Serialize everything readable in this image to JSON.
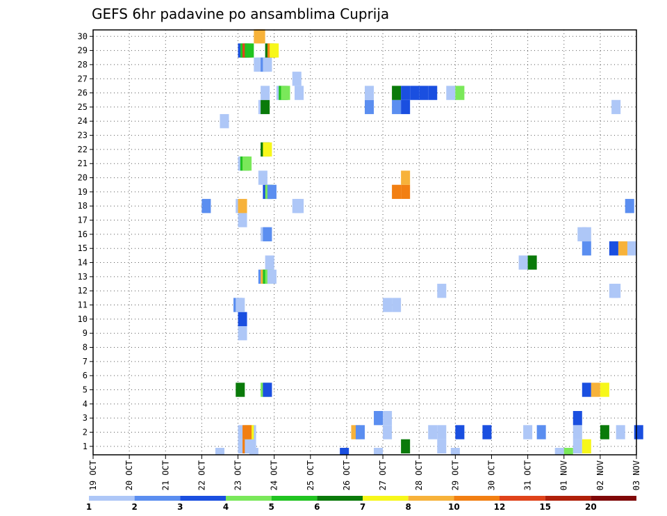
{
  "chart_data": {
    "type": "heatmap",
    "title": "GEFS 6hr padavine po ansamblima Cuprija",
    "xlabel": "",
    "ylabel": "",
    "x_tick_labels": [
      "19 OCT",
      "20 OCT",
      "21 OCT",
      "22 OCT",
      "23 OCT",
      "24 OCT",
      "25 OCT",
      "26 OCT",
      "27 OCT",
      "28 OCT",
      "29 OCT",
      "30 OCT",
      "31 OCT",
      "01 NOV",
      "02 NOV",
      "03 NOV"
    ],
    "y_tick_labels": [
      "1",
      "2",
      "3",
      "4",
      "5",
      "6",
      "7",
      "8",
      "9",
      "10",
      "11",
      "12",
      "13",
      "14",
      "15",
      "16",
      "17",
      "18",
      "19",
      "20",
      "21",
      "22",
      "23",
      "24",
      "25",
      "26",
      "27",
      "28",
      "29",
      "30"
    ],
    "xlim_days": [
      0,
      15
    ],
    "steps_per_day": 4,
    "ylim": [
      0,
      30
    ],
    "grid": true,
    "legend": {
      "colors": [
        "#aec7f7",
        "#5b8ef0",
        "#1a4fe0",
        "#7ae85a",
        "#21c421",
        "#0a7a0a",
        "#f7f71a",
        "#f7b23a",
        "#f27f12",
        "#e0431a",
        "#b0200a",
        "#800808"
      ],
      "labels": [
        "1",
        "2",
        "3",
        "4",
        "5",
        "6",
        "7",
        "8",
        "10",
        "12",
        "15",
        "20"
      ]
    },
    "cells": [
      [
        0,
        4,
        1
      ],
      [
        0,
        4.25,
        1
      ],
      [
        0,
        8.5,
        6
      ],
      [
        0,
        9.5,
        1
      ],
      [
        0,
        13.25,
        1
      ],
      [
        0,
        13.5,
        7
      ],
      [
        0,
        16.5,
        9
      ],
      [
        0,
        16.75,
        1
      ],
      [
        1,
        4,
        1
      ],
      [
        1,
        4.25,
        1
      ],
      [
        1,
        9.25,
        1
      ],
      [
        1,
        10,
        3
      ],
      [
        1,
        13.25,
        1
      ],
      [
        1,
        14,
        6
      ],
      [
        1,
        16.75,
        7
      ],
      [
        1,
        16.5,
        9
      ],
      [
        1,
        9.5,
        1
      ],
      [
        1,
        28.5,
        8
      ],
      [
        1,
        29,
        2
      ],
      [
        1,
        32,
        1
      ],
      [
        1,
        43,
        3
      ],
      [
        1,
        47.5,
        1
      ],
      [
        1,
        49,
        2
      ],
      [
        1,
        57.75,
        1
      ],
      [
        1,
        59.75,
        3
      ],
      [
        2,
        7.75,
        2
      ],
      [
        2,
        8,
        1
      ],
      [
        2,
        13.25,
        3
      ],
      [
        4,
        13.5,
        3
      ],
      [
        4,
        13.75,
        8
      ],
      [
        4,
        14,
        7
      ],
      [
        4,
        15.75,
        6
      ],
      [
        4,
        18.5,
        4
      ],
      [
        4,
        18.75,
        3
      ],
      [
        8,
        16,
        1
      ],
      [
        9,
        16,
        3
      ],
      [
        10,
        8,
        1
      ],
      [
        10,
        8.25,
        1
      ],
      [
        10,
        15.5,
        2
      ],
      [
        10,
        15.75,
        1
      ],
      [
        11,
        9.5,
        1
      ],
      [
        11,
        57,
        1
      ],
      [
        11,
        57.25,
        1
      ],
      [
        12,
        18.25,
        2
      ],
      [
        12,
        18.5,
        8
      ],
      [
        12,
        18.75,
        5
      ],
      [
        12,
        19,
        4
      ],
      [
        12,
        19.25,
        1
      ],
      [
        13,
        11.75,
        1
      ],
      [
        13,
        12,
        6
      ],
      [
        13,
        19,
        1
      ],
      [
        14,
        13.5,
        2
      ],
      [
        14,
        14.25,
        3
      ],
      [
        14,
        14.5,
        8
      ],
      [
        14,
        14.75,
        1
      ],
      [
        15,
        18.5,
        1
      ],
      [
        15,
        18.75,
        2
      ],
      [
        15,
        53.5,
        1
      ],
      [
        15,
        54,
        1
      ],
      [
        16,
        16,
        1
      ],
      [
        17,
        15.75,
        1
      ],
      [
        17,
        16,
        8
      ],
      [
        17,
        22,
        1
      ],
      [
        17,
        22.25,
        1
      ],
      [
        17,
        58.75,
        2
      ],
      [
        17,
        3,
        2
      ],
      [
        18,
        8.25,
        9
      ],
      [
        18,
        8.5,
        9
      ],
      [
        18,
        18.75,
        3
      ],
      [
        18,
        19,
        4
      ],
      [
        18,
        19.25,
        2
      ],
      [
        19,
        8.5,
        8
      ],
      [
        19,
        18.25,
        1
      ],
      [
        20,
        16,
        1
      ],
      [
        20,
        16.25,
        5
      ],
      [
        20,
        16.5,
        4
      ],
      [
        21,
        18.5,
        6
      ],
      [
        21,
        18.75,
        7
      ],
      [
        23,
        3.5,
        1
      ],
      [
        24,
        7.5,
        2
      ],
      [
        24,
        8.25,
        2
      ],
      [
        24,
        8.5,
        3
      ],
      [
        24,
        18.25,
        1
      ],
      [
        24,
        18.5,
        6
      ],
      [
        24,
        57.25,
        1
      ],
      [
        25,
        7.5,
        1
      ],
      [
        25,
        8.25,
        6
      ],
      [
        25,
        8.5,
        3
      ],
      [
        25,
        8.75,
        3
      ],
      [
        25,
        9,
        3
      ],
      [
        25,
        9.25,
        3
      ],
      [
        25,
        9.75,
        1
      ],
      [
        25,
        10,
        4
      ],
      [
        25,
        18.5,
        1
      ],
      [
        25,
        20.25,
        1
      ],
      [
        25,
        20.5,
        5
      ],
      [
        25,
        20.75,
        4
      ],
      [
        25,
        22.25,
        1
      ],
      [
        26,
        22,
        1
      ],
      [
        27,
        17.75,
        1
      ],
      [
        27,
        18,
        1
      ],
      [
        27,
        18.5,
        2
      ],
      [
        27,
        18.75,
        1
      ],
      [
        28,
        16,
        3
      ],
      [
        28,
        16.25,
        5
      ],
      [
        28,
        16.5,
        10
      ],
      [
        28,
        16.75,
        5
      ],
      [
        28,
        19,
        6
      ],
      [
        28,
        19.25,
        9
      ],
      [
        28,
        19.5,
        7
      ],
      [
        29,
        17.75,
        8
      ],
      [
        29,
        18,
        8
      ]
    ],
    "bottom_strip": [
      [
        13.5,
        1
      ],
      [
        17.25,
        1
      ],
      [
        27.25,
        3
      ],
      [
        31,
        1
      ],
      [
        39.5,
        1
      ],
      [
        51,
        1
      ],
      [
        52,
        4
      ]
    ]
  }
}
